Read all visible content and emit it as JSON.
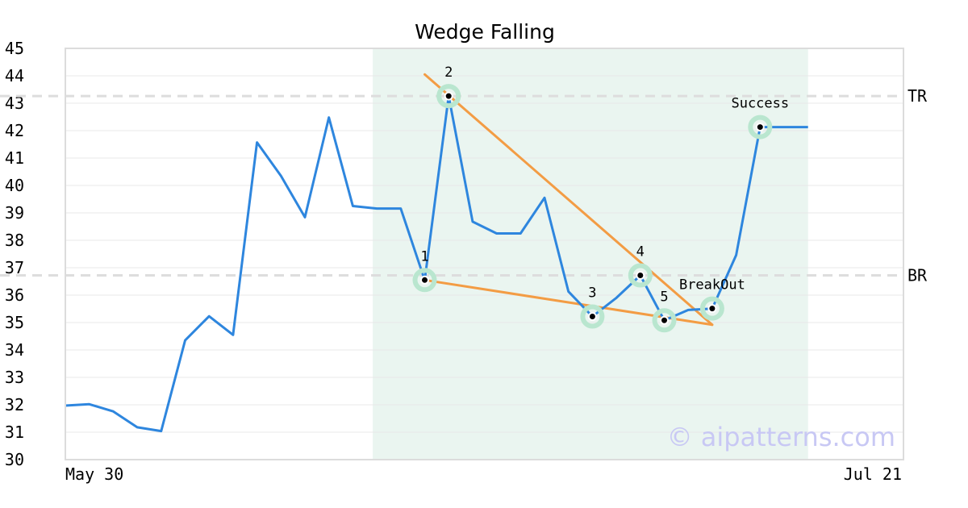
{
  "chart_data": {
    "type": "line",
    "title": "Wedge Falling",
    "xlabel": "",
    "ylabel": "",
    "ylim": [
      30,
      45
    ],
    "yticks": [
      "30",
      "31",
      "32",
      "33",
      "34",
      "35",
      "36",
      "37",
      "38",
      "39",
      "40",
      "41",
      "42",
      "43",
      "44",
      "45"
    ],
    "x_range_labels": [
      "May 30",
      "Jul 21"
    ],
    "grid": "horizontal",
    "colors": {
      "series": "#2e86de",
      "trendline": "#f39c44",
      "highlight": "#eaf5f0",
      "marker_halo": "#b9e6cf",
      "reference": "#dddddd"
    },
    "series": [
      {
        "values": [
          31.97,
          32.02,
          31.76,
          31.18,
          31.04,
          34.35,
          35.23,
          34.55,
          41.57,
          40.35,
          38.84,
          42.48,
          39.25,
          39.16,
          39.16,
          36.55,
          43.26,
          38.68,
          38.25,
          38.25,
          39.55,
          36.13,
          35.22,
          35.9,
          36.72,
          35.08,
          35.46,
          35.51,
          37.46,
          42.13,
          42.13,
          42.13
        ]
      }
    ],
    "highlight_range": [
      13,
      31
    ],
    "reference_lines": [
      {
        "label": "TR",
        "value": 43.26
      },
      {
        "label": "BR",
        "value": 36.72
      }
    ],
    "trendlines": [
      {
        "from": [
          15,
          44.05
        ],
        "to": [
          27,
          34.92
        ]
      },
      {
        "from": [
          15,
          36.55
        ],
        "to": [
          27,
          34.92
        ]
      }
    ],
    "points": [
      {
        "label": "1",
        "x": 15,
        "y": 36.55
      },
      {
        "label": "2",
        "x": 16,
        "y": 43.26
      },
      {
        "label": "3",
        "x": 22,
        "y": 35.22
      },
      {
        "label": "4",
        "x": 24,
        "y": 36.72
      },
      {
        "label": "5",
        "x": 25,
        "y": 35.08
      },
      {
        "label": "BreakOut",
        "x": 27,
        "y": 35.51
      },
      {
        "label": "Success",
        "x": 29,
        "y": 42.13
      }
    ],
    "watermark": "© aipatterns.com"
  }
}
